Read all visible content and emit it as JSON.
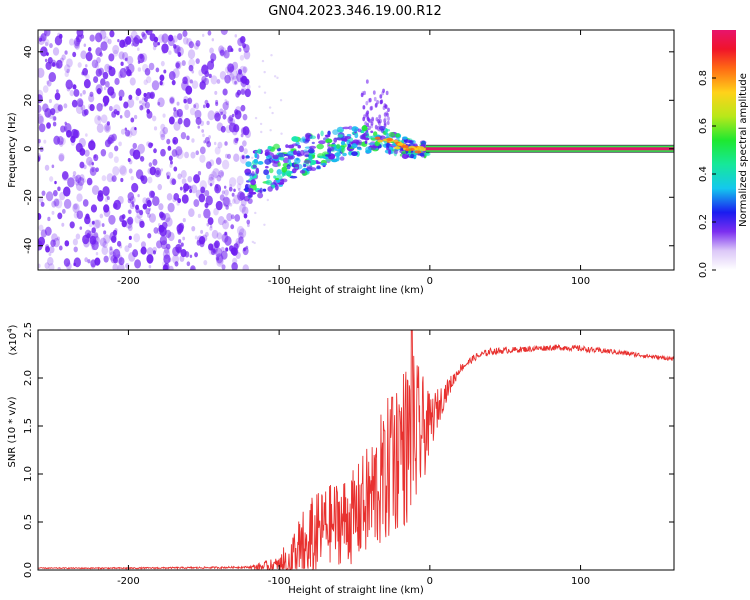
{
  "title": "GN04.2023.346.19.00.R12",
  "colors": {
    "snr_line": "#e8312f",
    "band_core": "#e0176a",
    "band_glow": "#31e84a",
    "scatter": "#6f1ef0"
  },
  "chart_data": [
    {
      "type": "heatmap",
      "name": "spectrogram",
      "xlabel": "Height of straight line (km)",
      "ylabel": "Frequency (Hz)",
      "xlim": [
        -260,
        162
      ],
      "ylim": [
        -50,
        49
      ],
      "xticks": [
        -200,
        -100,
        0,
        100
      ],
      "xtick_labels": [
        "-200",
        "-100",
        "0",
        "100"
      ],
      "yticks": [
        -40,
        -20,
        0,
        20,
        40
      ],
      "ytick_labels": [
        "-40",
        "-20",
        "0",
        "20",
        "40"
      ],
      "noise_region_x": [
        -260,
        -120
      ],
      "tone_band": {
        "x": [
          0,
          162
        ],
        "freq": 0
      },
      "trace": [
        [
          -120,
          -12
        ],
        [
          -110,
          -9
        ],
        [
          -100,
          -7
        ],
        [
          -90,
          -4
        ],
        [
          -80,
          -2
        ],
        [
          -70,
          0
        ],
        [
          -60,
          2
        ],
        [
          -50,
          3
        ],
        [
          -40,
          4
        ],
        [
          -30,
          4
        ],
        [
          -20,
          1
        ],
        [
          -10,
          0
        ],
        [
          0,
          0
        ]
      ],
      "colorbar": {
        "label": "Normalized spectral amplitude",
        "range": [
          0.0,
          1.0
        ],
        "ticks": [
          0.0,
          0.2,
          0.4,
          0.6,
          0.8
        ],
        "tick_labels": [
          "0.0",
          "0.2",
          "0.4",
          "0.6",
          "0.8"
        ]
      }
    },
    {
      "type": "line",
      "name": "snr",
      "xlabel": "Height of straight line (km)",
      "ylabel": "SNR (10 * v/v)",
      "scale_label": "(x10",
      "scale_exp": "4",
      "scale_close": ")",
      "xlim": [
        -260,
        162
      ],
      "ylim": [
        0.0,
        2.5
      ],
      "xticks": [
        -200,
        -100,
        0,
        100
      ],
      "xtick_labels": [
        "-200",
        "-100",
        "0",
        "100"
      ],
      "yticks": [
        0.0,
        0.5,
        1.0,
        1.5,
        2.0,
        2.5
      ],
      "ytick_labels": [
        "0.0",
        "0.5",
        "1.0",
        "1.5",
        "2.0",
        "2.5"
      ],
      "envelope": [
        [
          -260,
          0.02
        ],
        [
          -200,
          0.02
        ],
        [
          -150,
          0.025
        ],
        [
          -120,
          0.03
        ],
        [
          -100,
          0.05
        ],
        [
          -90,
          0.15
        ],
        [
          -80,
          0.3
        ],
        [
          -70,
          0.5
        ],
        [
          -60,
          0.55
        ],
        [
          -50,
          0.6
        ],
        [
          -40,
          0.8
        ],
        [
          -30,
          1.05
        ],
        [
          -20,
          1.35
        ],
        [
          -10,
          1.45
        ],
        [
          -5,
          1.5
        ],
        [
          0,
          1.55
        ],
        [
          10,
          1.85
        ],
        [
          20,
          2.1
        ],
        [
          30,
          2.22
        ],
        [
          40,
          2.28
        ],
        [
          50,
          2.29
        ],
        [
          60,
          2.3
        ],
        [
          70,
          2.31
        ],
        [
          80,
          2.32
        ],
        [
          90,
          2.32
        ],
        [
          100,
          2.31
        ],
        [
          110,
          2.29
        ],
        [
          120,
          2.28
        ],
        [
          130,
          2.26
        ],
        [
          140,
          2.24
        ],
        [
          150,
          2.22
        ],
        [
          162,
          2.2
        ]
      ],
      "noise_amplitude": [
        [
          -260,
          0.005
        ],
        [
          -120,
          0.01
        ],
        [
          -100,
          0.1
        ],
        [
          -90,
          0.35
        ],
        [
          -80,
          0.5
        ],
        [
          -70,
          0.4
        ],
        [
          -60,
          0.45
        ],
        [
          -50,
          0.5
        ],
        [
          -40,
          0.6
        ],
        [
          -30,
          0.75
        ],
        [
          -20,
          0.85
        ],
        [
          -10,
          0.9
        ],
        [
          0,
          0.3
        ],
        [
          10,
          0.12
        ],
        [
          20,
          0.04
        ],
        [
          60,
          0.03
        ],
        [
          100,
          0.03
        ],
        [
          162,
          0.02
        ]
      ],
      "peaks": [
        [
          -70,
          0.7
        ],
        [
          -45,
          0.9
        ],
        [
          -30,
          1.45
        ],
        [
          -25,
          1.8
        ],
        [
          -20,
          1.65
        ],
        [
          -12,
          2.5
        ],
        [
          -8,
          1.9
        ]
      ]
    }
  ]
}
